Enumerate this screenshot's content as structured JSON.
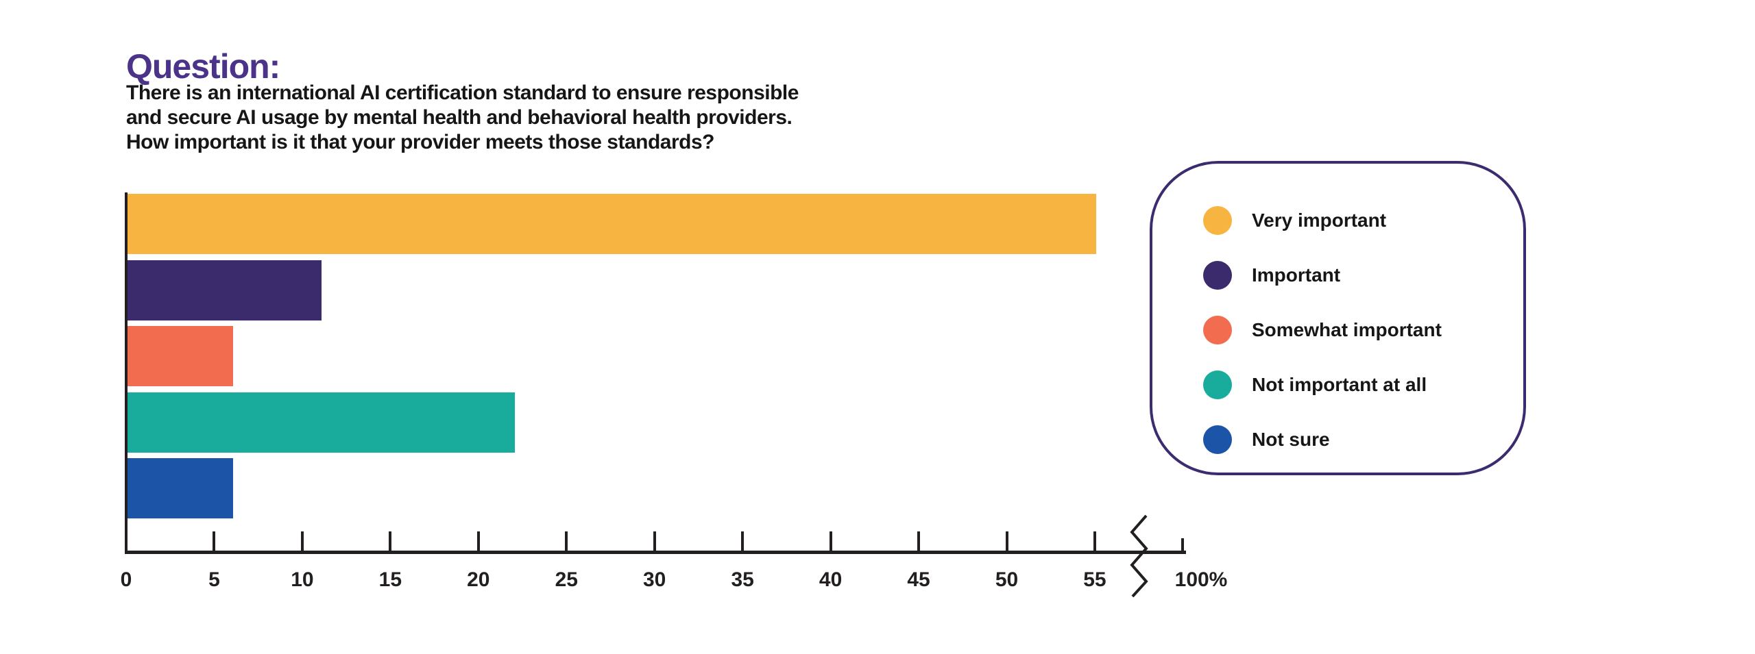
{
  "header": {
    "title": "Question:",
    "title_color": "#4A3389",
    "question_lines": [
      "There is an international AI certification standard to ensure responsible",
      "and secure AI usage by mental health and behavioral health providers.",
      "How important is it that your provider meets those standards?"
    ]
  },
  "chart_data": {
    "type": "bar",
    "orientation": "horizontal",
    "title": "",
    "xlabel": "",
    "ylabel": "",
    "categories": [
      "Very important",
      "Important",
      "Somewhat important",
      "Not important at all",
      "Not sure"
    ],
    "values": [
      55,
      11,
      6,
      22,
      6
    ],
    "unit": "%",
    "colors": [
      "#F8B440",
      "#3B2A6C",
      "#F26C4F",
      "#19AB9B",
      "#1C55A8"
    ],
    "x_ticks": [
      0,
      5,
      10,
      15,
      20,
      25,
      30,
      35,
      40,
      45,
      50,
      55
    ],
    "xlim": [
      0,
      55
    ],
    "axis_break": true,
    "axis_break_label": "100%",
    "axis_color": "#231F20",
    "grid": false,
    "legend_position": "right"
  },
  "legend": {
    "border_color": "#3D2B70",
    "items": [
      {
        "label": "Very important",
        "color": "#F8B440"
      },
      {
        "label": "Important",
        "color": "#3B2A6C"
      },
      {
        "label": "Somewhat important",
        "color": "#F26C4F"
      },
      {
        "label": "Not important at all",
        "color": "#19AB9B"
      },
      {
        "label": "Not sure",
        "color": "#1C55A8"
      }
    ]
  }
}
